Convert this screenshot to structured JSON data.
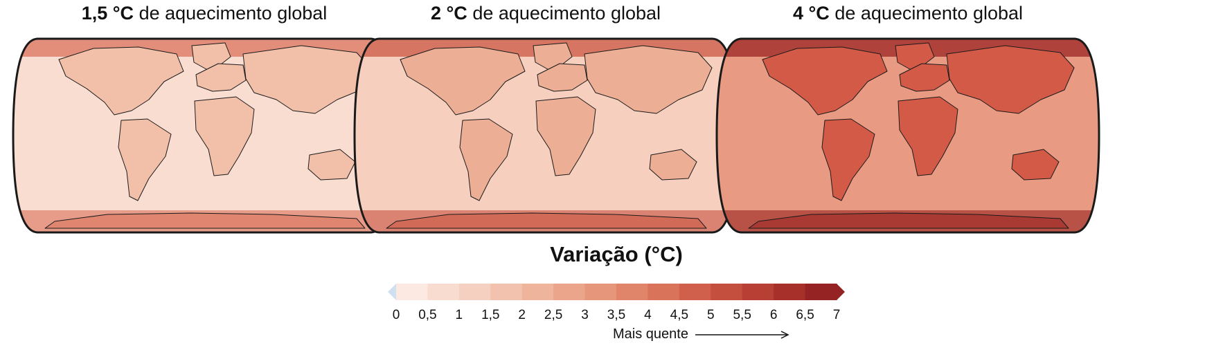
{
  "panels": [
    {
      "title_value": "1,5 °C",
      "title_rest": " de aquecimento global",
      "level": 1
    },
    {
      "title_value": "2 °C",
      "title_rest": " de aquecimento global",
      "level": 2
    },
    {
      "title_value": "4 °C",
      "title_rest": " de aquecimento global",
      "level": 3
    }
  ],
  "legend": {
    "title": "Variação (°C)",
    "ticks": [
      "0",
      "0,5",
      "1",
      "1,5",
      "2",
      "2,5",
      "3",
      "3,5",
      "4",
      "4,5",
      "5",
      "5,5",
      "6",
      "6,5",
      "7"
    ],
    "warmer_label": "Mais quente",
    "cold_color": "#cfe0f0",
    "colors": [
      "#fbe9e2",
      "#f8dcd0",
      "#f5cfbf",
      "#f2c2ae",
      "#eeb49c",
      "#eaa58b",
      "#e6967a",
      "#e0856a",
      "#d9735a",
      "#d0604b",
      "#c44f3e",
      "#b73f34",
      "#a8302b",
      "#962323"
    ]
  },
  "colors": {
    "ocean_levels": [
      "#f9ddd1",
      "#f6cfbe",
      "#e89a82"
    ],
    "land_levels": [
      "#f2bfa8",
      "#ecae94",
      "#d45a48"
    ],
    "pole_levels": [
      "#df8570",
      "#d26a58",
      "#a83a33"
    ],
    "outline": "#1a1a1a"
  }
}
